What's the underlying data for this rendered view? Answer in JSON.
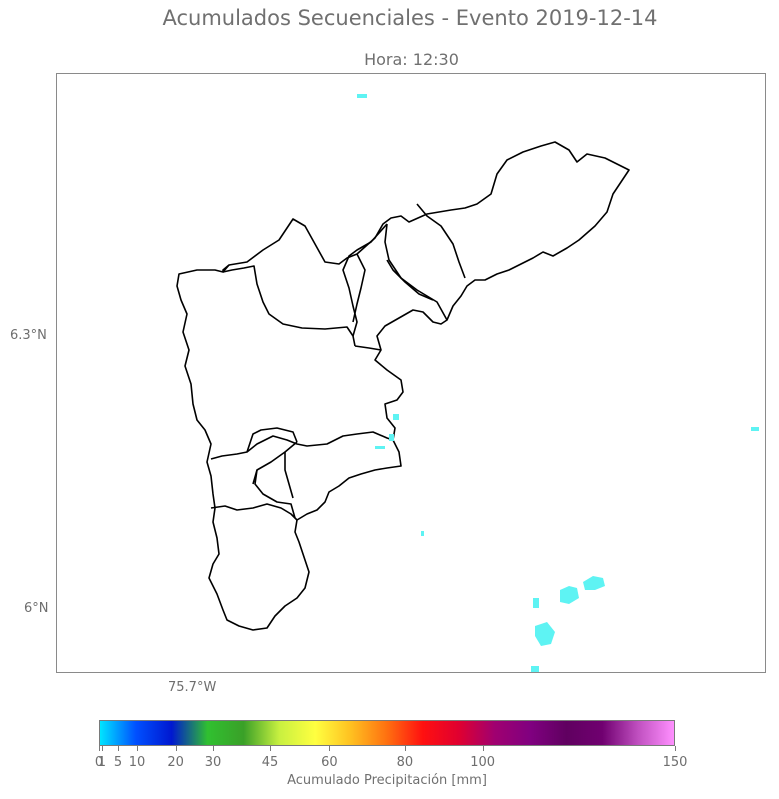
{
  "figure": {
    "title": "Acumulados Secuenciales - Evento 2019-12-14",
    "subtitle": "Hora: 12:30"
  },
  "map": {
    "latitude_labels": [
      "6.3°N",
      "6°N"
    ],
    "longitude_labels": [
      "75.7°W"
    ],
    "boundary_color": "#000000",
    "rain_color": "#5ef3f3"
  },
  "colorbar": {
    "label": "Acumulado Precipitación [mm]",
    "min": 0,
    "max": 150,
    "ticks": [
      {
        "value": 0,
        "label": "0"
      },
      {
        "value": 1,
        "label": "1"
      },
      {
        "value": 5,
        "label": "5"
      },
      {
        "value": 10,
        "label": "10"
      },
      {
        "value": 20,
        "label": "20"
      },
      {
        "value": 30,
        "label": "30"
      },
      {
        "value": 45,
        "label": "45"
      },
      {
        "value": 60,
        "label": "60"
      },
      {
        "value": 80,
        "label": "80"
      },
      {
        "value": 100,
        "label": "100"
      },
      {
        "value": 150,
        "label": "150"
      }
    ],
    "gradient": [
      "#00e5ff",
      "#0050ff",
      "#0018d0",
      "#30c030",
      "#3aa028",
      "#c8f040",
      "#ffff40",
      "#ffc020",
      "#ff7010",
      "#ff1010",
      "#e00030",
      "#a00070",
      "#800080",
      "#600060",
      "#700070",
      "#c050c0",
      "#ff90ff"
    ]
  }
}
